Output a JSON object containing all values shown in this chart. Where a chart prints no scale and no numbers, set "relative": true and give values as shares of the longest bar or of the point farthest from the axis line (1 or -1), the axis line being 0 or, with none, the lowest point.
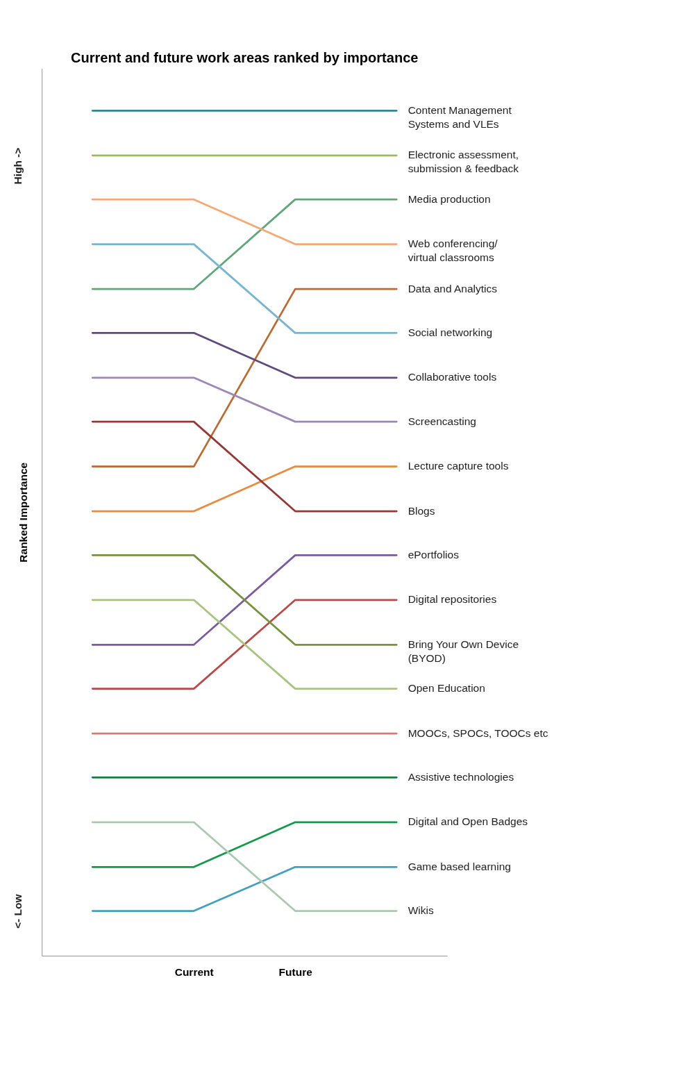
{
  "chart_data": {
    "type": "line",
    "title": "Current and future work areas ranked by importance",
    "ylabel": "Ranked Importance",
    "annotations": [
      "High ->",
      "<- Low"
    ],
    "relative": true,
    "categories": [
      null,
      "Current",
      "Future",
      null
    ],
    "series": [
      {
        "name": "Content Management Systems and VLEs",
        "color": "#31849b",
        "values": [
          1.0,
          1.0,
          1.0,
          1.0
        ]
      },
      {
        "name": "Electronic assessment, submission & feedback",
        "color": "#9bbb59",
        "values": [
          0.947,
          0.947,
          0.947,
          0.947
        ]
      },
      {
        "name": "Media production",
        "color": "#5ea878",
        "values": [
          0.789,
          0.789,
          0.895,
          0.895
        ]
      },
      {
        "name": "Web conferencing/ virtual classrooms",
        "color": "#f7a872",
        "values": [
          0.895,
          0.895,
          0.842,
          0.842
        ]
      },
      {
        "name": "Data and Analytics",
        "color": "#c0692f",
        "values": [
          0.579,
          0.579,
          0.789,
          0.789
        ]
      },
      {
        "name": "Social networking",
        "color": "#76b6d0",
        "values": [
          0.842,
          0.842,
          0.737,
          0.737
        ]
      },
      {
        "name": "Collaborative tools",
        "color": "#5f4a7e",
        "values": [
          0.737,
          0.737,
          0.684,
          0.684
        ]
      },
      {
        "name": "Screencasting",
        "color": "#9a88b7",
        "values": [
          0.684,
          0.684,
          0.632,
          0.632
        ]
      },
      {
        "name": "Lecture capture tools",
        "color": "#e98a3d",
        "values": [
          0.526,
          0.526,
          0.579,
          0.579
        ]
      },
      {
        "name": "Blogs",
        "color": "#953735",
        "values": [
          0.632,
          0.632,
          0.526,
          0.526
        ]
      },
      {
        "name": "ePortfolios",
        "color": "#7a5ba0",
        "values": [
          0.368,
          0.368,
          0.474,
          0.474
        ]
      },
      {
        "name": "Digital repositories",
        "color": "#b94a48",
        "values": [
          0.316,
          0.316,
          0.421,
          0.421
        ]
      },
      {
        "name": "Bring Your Own Device (BYOD)",
        "color": "#76923c",
        "values": [
          0.474,
          0.474,
          0.368,
          0.368
        ]
      },
      {
        "name": "Open Education",
        "color": "#a8c47c",
        "values": [
          0.421,
          0.421,
          0.316,
          0.316
        ]
      },
      {
        "name": "MOOCs, SPOCs, TOOCs etc",
        "color": "#d07a7a",
        "values": [
          0.263,
          0.263,
          0.263,
          0.263
        ]
      },
      {
        "name": "Assistive technologies",
        "color": "#1a7a3a",
        "values": [
          0.211,
          0.211,
          0.211,
          0.211
        ]
      },
      {
        "name": "Digital and Open Badges",
        "color": "#13994a",
        "values": [
          0.105,
          0.105,
          0.158,
          0.158
        ]
      },
      {
        "name": "Game based learning",
        "color": "#41a0c0",
        "values": [
          0.053,
          0.053,
          0.105,
          0.105
        ]
      },
      {
        "name": "Wikis",
        "color": "#a9c9b0",
        "values": [
          0.158,
          0.158,
          0.053,
          0.053
        ]
      }
    ]
  }
}
